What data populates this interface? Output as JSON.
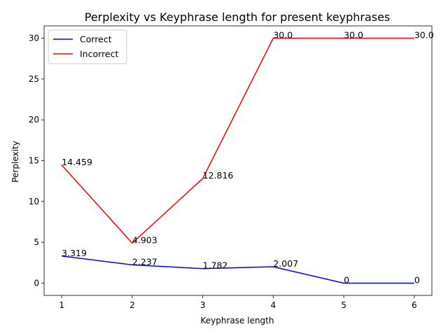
{
  "chart_data": {
    "type": "line",
    "title": "Perplexity vs Keyphrase length for present keyphrases",
    "xlabel": "Keyphrase length",
    "ylabel": "Perplexity",
    "x": [
      1,
      2,
      3,
      4,
      5,
      6
    ],
    "xlim": [
      0.75,
      6.25
    ],
    "ylim": [
      -1.5,
      31.5
    ],
    "xticks": [
      1,
      2,
      3,
      4,
      5,
      6
    ],
    "yticks": [
      0,
      5,
      10,
      15,
      20,
      25,
      30
    ],
    "grid": false,
    "legend_position": "top-left",
    "series": [
      {
        "name": "Correct",
        "color": "#0000ff",
        "values": [
          3.319,
          2.237,
          1.782,
          2.007,
          0,
          0
        ],
        "labels": [
          "3.319",
          "2.237",
          "1.782",
          "2.007",
          "0",
          "0"
        ]
      },
      {
        "name": "Incorrect",
        "color": "#ff0000",
        "values": [
          14.459,
          4.903,
          12.816,
          30.0,
          30.0,
          30.0
        ],
        "labels": [
          "14.459",
          "4.903",
          "12.816",
          "30.0",
          "30.0",
          "30.0"
        ]
      }
    ]
  }
}
